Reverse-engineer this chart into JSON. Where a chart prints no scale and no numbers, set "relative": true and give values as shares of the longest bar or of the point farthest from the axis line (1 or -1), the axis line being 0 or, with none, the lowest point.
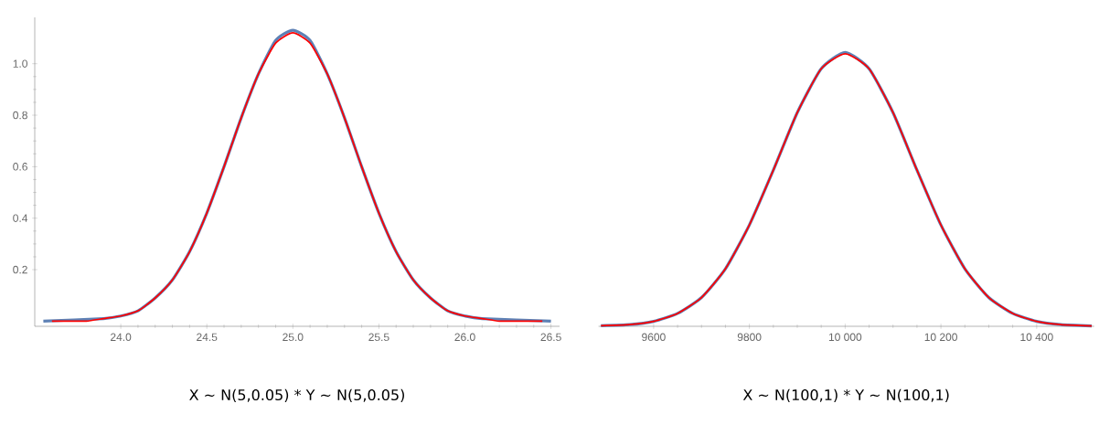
{
  "chart_data": [
    {
      "type": "line",
      "xlabel": "X ∼  N(5,0.05) * Y ∼  N(5,0.05)",
      "xlim": [
        23.5,
        26.55
      ],
      "ylim": [
        -0.02,
        1.18
      ],
      "xticks": [
        {
          "value": 24,
          "label": "24.0"
        },
        24.5,
        {
          "value": 25,
          "label": "25.0"
        },
        25.5,
        {
          "value": 26,
          "label": "26.0"
        },
        26.5
      ],
      "yticks": [
        0.2,
        0.4,
        0.6,
        0.8,
        {
          "value": 1,
          "label": "1.0"
        }
      ],
      "x": [
        23.6,
        23.7,
        23.8,
        23.9,
        24.0,
        24.1,
        24.2,
        24.3,
        24.4,
        24.5,
        24.6,
        24.7,
        24.8,
        24.9,
        25.0,
        25.1,
        25.2,
        25.3,
        25.4,
        25.5,
        25.6,
        25.7,
        25.8,
        25.9,
        26.0,
        26.1,
        26.2,
        26.3,
        26.4,
        26.45
      ],
      "series": [
        {
          "color": "#5e81b5",
          "x": [
            23.55,
            23.9,
            24.0,
            24.1,
            24.2,
            24.3,
            24.4,
            24.5,
            24.6,
            24.7,
            24.8,
            24.9,
            25.0,
            25.1,
            25.2,
            25.3,
            25.4,
            25.5,
            25.6,
            25.7,
            25.8,
            25.9,
            26.0,
            26.1,
            26.5
          ],
          "values": [
            0.0,
            0.01,
            0.02,
            0.04,
            0.09,
            0.16,
            0.27,
            0.42,
            0.6,
            0.79,
            0.96,
            1.09,
            1.13,
            1.09,
            0.96,
            0.79,
            0.6,
            0.42,
            0.27,
            0.16,
            0.09,
            0.04,
            0.02,
            0.01,
            0.0
          ]
        },
        {
          "color": "#ff0000",
          "values": [
            0.0,
            0.0,
            0.0,
            0.01,
            0.02,
            0.04,
            0.09,
            0.16,
            0.27,
            0.42,
            0.6,
            0.79,
            0.96,
            1.08,
            1.12,
            1.08,
            0.96,
            0.79,
            0.6,
            0.42,
            0.27,
            0.16,
            0.09,
            0.04,
            0.02,
            0.01,
            0.0,
            0.0,
            0.0,
            0.0
          ]
        }
      ]
    },
    {
      "type": "line",
      "xlabel": "X ∼  N(100,1) * Y ∼  N(100,1)",
      "relative": true,
      "xlim": [
        9485,
        10520
      ],
      "xticks": [
        9600,
        9800,
        {
          "value": 10000,
          "label": "10 000"
        },
        {
          "value": 10200,
          "label": "10 200"
        },
        {
          "value": 10400,
          "label": "10 400"
        }
      ],
      "x": [
        9490,
        9550,
        9600,
        9650,
        9700,
        9750,
        9800,
        9850,
        9900,
        9950,
        10000,
        10050,
        10100,
        10150,
        10200,
        10250,
        10300,
        10350,
        10400,
        10450,
        10515
      ],
      "series": [
        {
          "color": "#5e81b5",
          "values": [
            0.002,
            0.006,
            0.018,
            0.047,
            0.105,
            0.21,
            0.37,
            0.57,
            0.78,
            0.94,
            1,
            0.94,
            0.78,
            0.57,
            0.37,
            0.21,
            0.105,
            0.047,
            0.018,
            0.006,
            0.001
          ]
        },
        {
          "color": "#ff0000",
          "values": [
            0.002,
            0.006,
            0.018,
            0.047,
            0.105,
            0.21,
            0.37,
            0.57,
            0.78,
            0.94,
            0.995,
            0.94,
            0.78,
            0.57,
            0.37,
            0.21,
            0.105,
            0.047,
            0.018,
            0.006,
            0.001
          ]
        }
      ]
    }
  ]
}
